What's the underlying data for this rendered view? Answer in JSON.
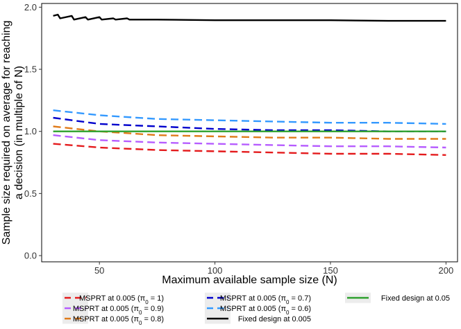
{
  "chart_data": {
    "type": "line",
    "title": "",
    "xlabel": "Maximum available sample size (N)",
    "ylabel_line1": "Sample size required on average for reaching",
    "ylabel_line2": "a decision (in multiple of N)",
    "xlim": [
      25,
      205
    ],
    "ylim": [
      -0.05,
      2.03
    ],
    "xticks": [
      50,
      100,
      150,
      200
    ],
    "xtick_labels": [
      "50",
      "100",
      "150",
      "200"
    ],
    "yticks": [
      0.0,
      0.5,
      1.0,
      1.5,
      2.0
    ],
    "ytick_labels": [
      "0.0",
      "0.5",
      "1.0",
      "1.5",
      "2.0"
    ],
    "grid": false,
    "legend_position": "bottom",
    "series": [
      {
        "name": "MSPRT at 0.005 (π0 = 1)",
        "legend_text": "MSPRT at 0.005",
        "pi_value": "1",
        "color": "#e41a1c",
        "dash": "dashed",
        "x": [
          30,
          50,
          75,
          100,
          125,
          150,
          175,
          200
        ],
        "y": [
          0.9,
          0.87,
          0.85,
          0.84,
          0.83,
          0.82,
          0.82,
          0.81
        ]
      },
      {
        "name": "MSPRT at 0.005 (π0 = 0.9)",
        "legend_text": "MSPRT at 0.005",
        "pi_value": "0.9",
        "color": "#b65cff",
        "dash": "dashed",
        "x": [
          30,
          50,
          75,
          100,
          125,
          150,
          175,
          200
        ],
        "y": [
          0.97,
          0.93,
          0.91,
          0.9,
          0.89,
          0.88,
          0.88,
          0.87
        ]
      },
      {
        "name": "MSPRT at 0.005 (π0 = 0.8)",
        "legend_text": "MSPRT at 0.005",
        "pi_value": "0.8",
        "color": "#e07b1a",
        "dash": "dashed",
        "x": [
          30,
          50,
          75,
          100,
          125,
          150,
          175,
          200
        ],
        "y": [
          1.04,
          1.0,
          0.97,
          0.96,
          0.95,
          0.95,
          0.94,
          0.94
        ]
      },
      {
        "name": "MSPRT at 0.005 (π0 = 0.7)",
        "legend_text": "MSPRT at 0.005",
        "pi_value": "0.7",
        "color": "#0000cc",
        "dash": "dashed",
        "x": [
          30,
          50,
          75,
          100,
          125,
          150,
          175,
          200
        ],
        "y": [
          1.11,
          1.06,
          1.04,
          1.02,
          1.01,
          1.01,
          1.0,
          1.0
        ]
      },
      {
        "name": "MSPRT at 0.005 (π0 = 0.6)",
        "legend_text": "MSPRT at 0.005",
        "pi_value": "0.6",
        "color": "#3399ff",
        "dash": "dashed",
        "x": [
          30,
          50,
          75,
          100,
          125,
          150,
          175,
          200
        ],
        "y": [
          1.17,
          1.13,
          1.1,
          1.09,
          1.08,
          1.07,
          1.07,
          1.06
        ]
      },
      {
        "name": "Fixed design at 0.005",
        "legend_text": "Fixed design at 0.005",
        "pi_value": "",
        "color": "#000000",
        "dash": "solid",
        "x": [
          30,
          32,
          33,
          38,
          39,
          44,
          45,
          50,
          51,
          56,
          57,
          62,
          63,
          75,
          100,
          125,
          150,
          175,
          200
        ],
        "y": [
          1.93,
          1.94,
          1.91,
          1.93,
          1.9,
          1.92,
          1.9,
          1.92,
          1.9,
          1.91,
          1.9,
          1.91,
          1.9,
          1.9,
          1.895,
          1.895,
          1.895,
          1.89,
          1.89
        ]
      },
      {
        "name": "Fixed design at 0.05",
        "legend_text": "Fixed design at 0.05",
        "pi_value": "",
        "color": "#2ca02c",
        "dash": "solid",
        "x": [
          30,
          200
        ],
        "y": [
          1.0,
          1.0
        ]
      }
    ]
  }
}
